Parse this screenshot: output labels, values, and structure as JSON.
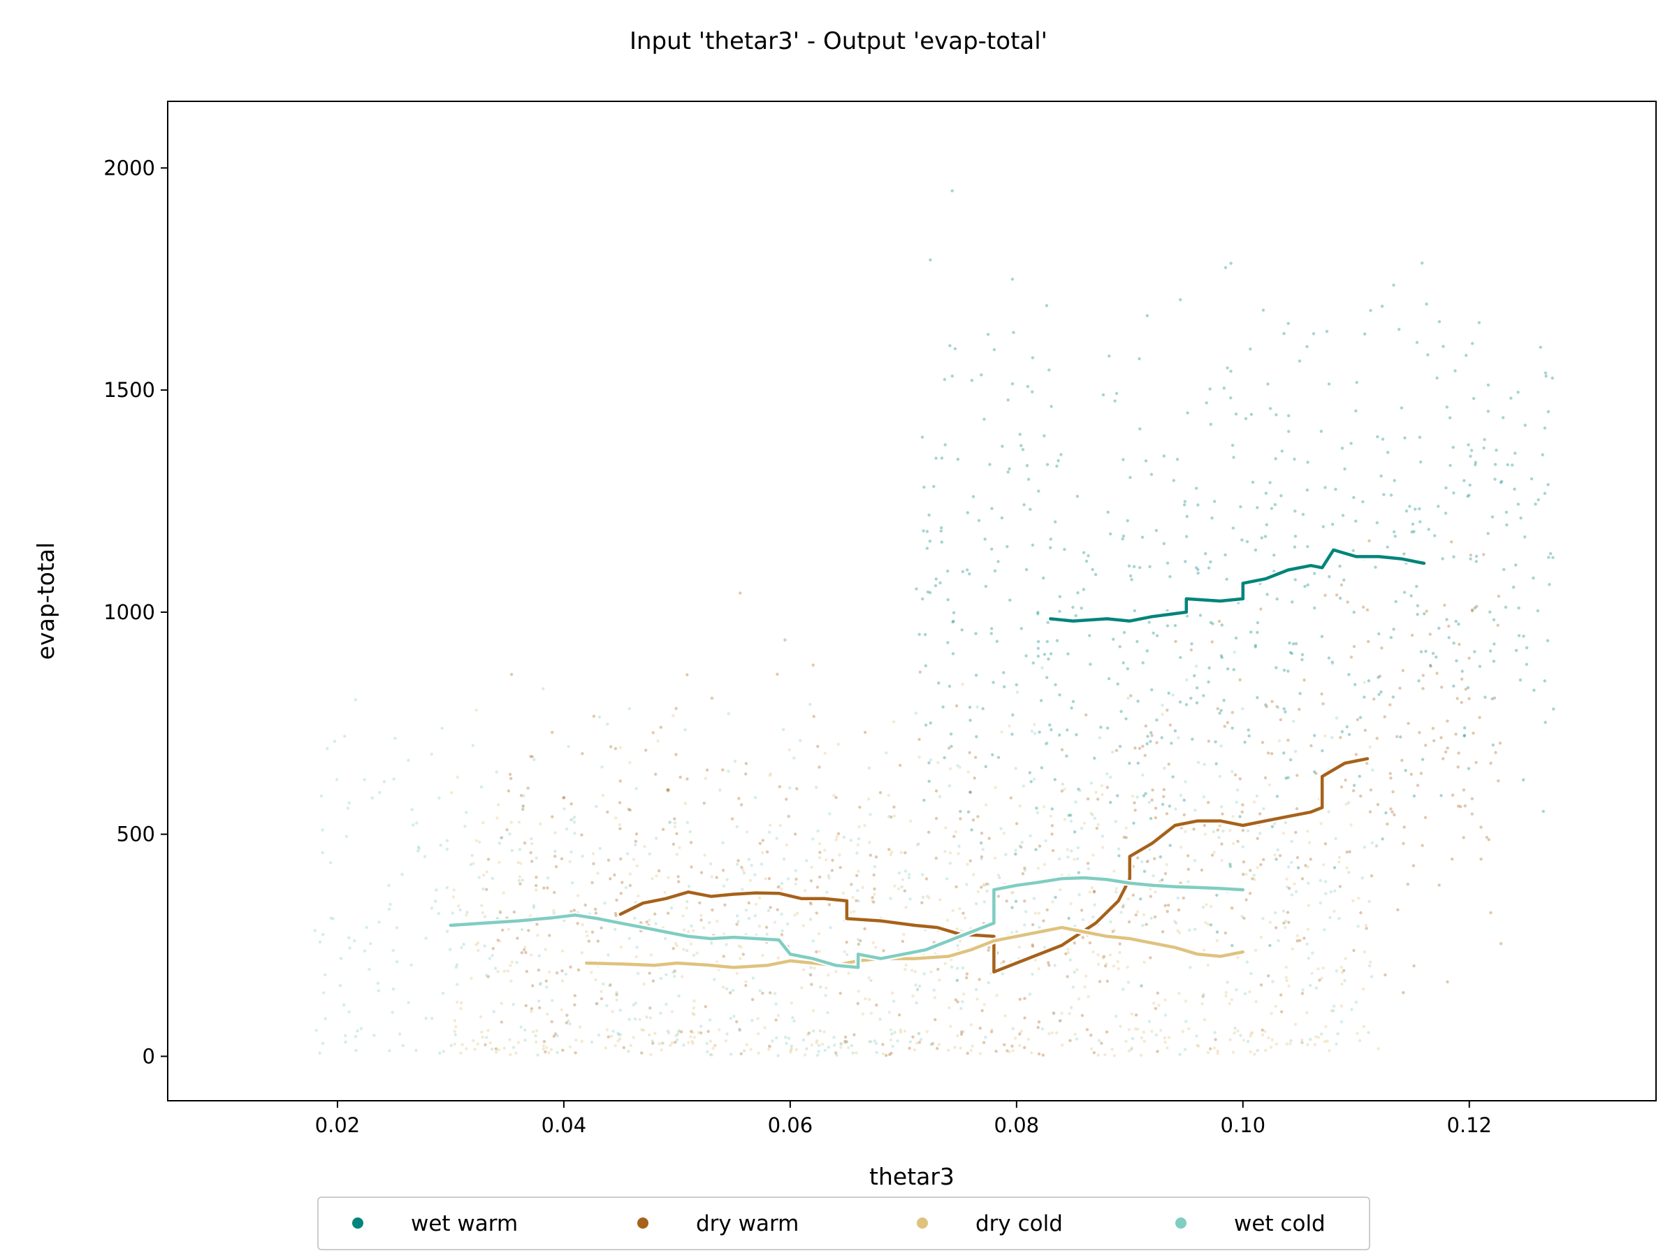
{
  "chart_data": {
    "type": "scatter",
    "title": "Input 'thetar3' - Output 'evap-total'",
    "xlabel": "thetar3",
    "ylabel": "evap-total",
    "xlim": [
      0.005,
      0.1365
    ],
    "ylim": [
      -100,
      2150
    ],
    "xticks": [
      0.02,
      0.04,
      0.06,
      0.08,
      0.1,
      0.12
    ],
    "xtick_labels": [
      "0.02",
      "0.04",
      "0.06",
      "0.08",
      "0.10",
      "0.12"
    ],
    "yticks": [
      0,
      500,
      1000,
      1500,
      2000
    ],
    "ytick_labels": [
      "0",
      "500",
      "1000",
      "1500",
      "2000"
    ],
    "grid": false,
    "legend_position": "bottom-center",
    "series": [
      {
        "name": "wet warm",
        "color": "#01847a",
        "trend": {
          "x": [
            0.083,
            0.085,
            0.088,
            0.09,
            0.092,
            0.095,
            0.095,
            0.098,
            0.1,
            0.1,
            0.102,
            0.104,
            0.106,
            0.107,
            0.108,
            0.11,
            0.112,
            0.114,
            0.116
          ],
          "y": [
            985,
            980,
            985,
            980,
            990,
            1000,
            1030,
            1025,
            1030,
            1065,
            1075,
            1095,
            1105,
            1100,
            1140,
            1125,
            1125,
            1120,
            1110
          ]
        }
      },
      {
        "name": "dry warm",
        "color": "#a6611a",
        "trend": {
          "x": [
            0.045,
            0.047,
            0.049,
            0.051,
            0.053,
            0.055,
            0.057,
            0.059,
            0.061,
            0.063,
            0.065,
            0.065,
            0.068,
            0.071,
            0.073,
            0.075,
            0.078,
            0.078,
            0.081,
            0.084,
            0.087,
            0.089,
            0.09,
            0.09,
            0.092,
            0.094,
            0.096,
            0.098,
            0.1,
            0.102,
            0.104,
            0.106,
            0.107,
            0.107,
            0.109,
            0.111
          ],
          "y": [
            320,
            345,
            355,
            370,
            360,
            365,
            368,
            367,
            355,
            355,
            350,
            310,
            305,
            295,
            290,
            275,
            270,
            190,
            220,
            250,
            300,
            350,
            400,
            450,
            480,
            520,
            530,
            530,
            520,
            530,
            540,
            550,
            560,
            630,
            660,
            670
          ]
        }
      },
      {
        "name": "dry cold",
        "color": "#dfc27d",
        "trend": {
          "x": [
            0.042,
            0.045,
            0.048,
            0.05,
            0.053,
            0.055,
            0.058,
            0.06,
            0.062,
            0.064,
            0.066,
            0.068,
            0.071,
            0.074,
            0.076,
            0.078,
            0.08,
            0.082,
            0.084,
            0.086,
            0.088,
            0.09,
            0.092,
            0.094,
            0.096,
            0.098,
            0.1
          ],
          "y": [
            210,
            208,
            205,
            210,
            205,
            200,
            205,
            215,
            210,
            205,
            215,
            220,
            220,
            225,
            240,
            260,
            270,
            280,
            290,
            280,
            270,
            265,
            255,
            245,
            230,
            225,
            235
          ]
        }
      },
      {
        "name": "wet cold",
        "color": "#80cdc1",
        "trend": {
          "x": [
            0.03,
            0.033,
            0.036,
            0.039,
            0.041,
            0.043,
            0.045,
            0.047,
            0.049,
            0.051,
            0.053,
            0.055,
            0.057,
            0.059,
            0.06,
            0.062,
            0.064,
            0.066,
            0.066,
            0.068,
            0.07,
            0.072,
            0.074,
            0.076,
            0.078,
            0.078,
            0.08,
            0.082,
            0.084,
            0.086,
            0.088,
            0.09,
            0.092,
            0.094,
            0.096,
            0.098,
            0.1
          ],
          "y": [
            295,
            300,
            305,
            312,
            318,
            310,
            300,
            290,
            280,
            270,
            265,
            268,
            265,
            262,
            230,
            220,
            205,
            200,
            230,
            220,
            230,
            240,
            260,
            280,
            300,
            375,
            385,
            392,
            400,
            402,
            398,
            390,
            385,
            382,
            380,
            378,
            375
          ]
        }
      }
    ]
  }
}
